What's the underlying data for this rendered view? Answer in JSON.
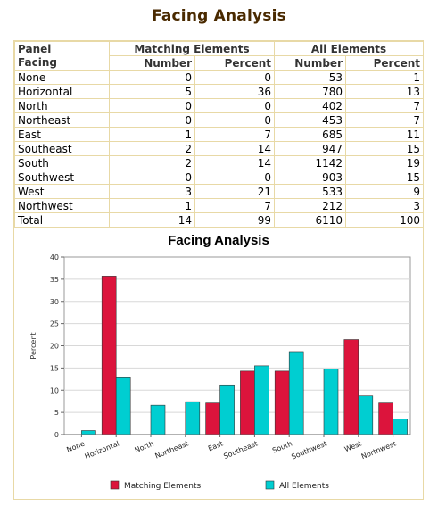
{
  "page": {
    "title": "Facing Analysis"
  },
  "table": {
    "head_panel_1": "Panel",
    "head_panel_2": "Facing",
    "group_matching": "Matching Elements",
    "group_all": "All Elements",
    "col_number": "Number",
    "col_percent": "Percent",
    "rows": [
      {
        "name": "None",
        "m_num": "0",
        "m_pct": "0",
        "a_num": "53",
        "a_pct": "1"
      },
      {
        "name": "Horizontal",
        "m_num": "5",
        "m_pct": "36",
        "a_num": "780",
        "a_pct": "13"
      },
      {
        "name": "North",
        "m_num": "0",
        "m_pct": "0",
        "a_num": "402",
        "a_pct": "7"
      },
      {
        "name": "Northeast",
        "m_num": "0",
        "m_pct": "0",
        "a_num": "453",
        "a_pct": "7"
      },
      {
        "name": "East",
        "m_num": "1",
        "m_pct": "7",
        "a_num": "685",
        "a_pct": "11"
      },
      {
        "name": "Southeast",
        "m_num": "2",
        "m_pct": "14",
        "a_num": "947",
        "a_pct": "15"
      },
      {
        "name": "South",
        "m_num": "2",
        "m_pct": "14",
        "a_num": "1142",
        "a_pct": "19"
      },
      {
        "name": "Southwest",
        "m_num": "0",
        "m_pct": "0",
        "a_num": "903",
        "a_pct": "15"
      },
      {
        "name": "West",
        "m_num": "3",
        "m_pct": "21",
        "a_num": "533",
        "a_pct": "9"
      },
      {
        "name": "Northwest",
        "m_num": "1",
        "m_pct": "7",
        "a_num": "212",
        "a_pct": "3"
      }
    ],
    "total": {
      "name": "Total",
      "m_num": "14",
      "m_pct": "99",
      "a_num": "6110",
      "a_pct": "100"
    }
  },
  "chart_data": {
    "type": "bar",
    "title": "Facing Analysis",
    "xlabel": "",
    "ylabel": "Percent",
    "ylim": [
      0,
      40
    ],
    "yticks": [
      "0",
      "5",
      "10",
      "15",
      "20",
      "25",
      "30",
      "35",
      "40"
    ],
    "grid": true,
    "legend_position": "bottom",
    "categories": [
      "None",
      "Horizontal",
      "North",
      "Northeast",
      "East",
      "Southeast",
      "South",
      "Southwest",
      "West",
      "Northwest"
    ],
    "series": [
      {
        "name": "Matching Elements",
        "color": "#dc143c",
        "values": [
          0,
          35.7,
          0,
          0,
          7.1,
          14.3,
          14.3,
          0,
          21.4,
          7.1
        ]
      },
      {
        "name": "All Elements",
        "color": "#00ced1",
        "values": [
          0.9,
          12.8,
          6.6,
          7.4,
          11.2,
          15.5,
          18.7,
          14.8,
          8.7,
          3.5
        ]
      }
    ]
  }
}
